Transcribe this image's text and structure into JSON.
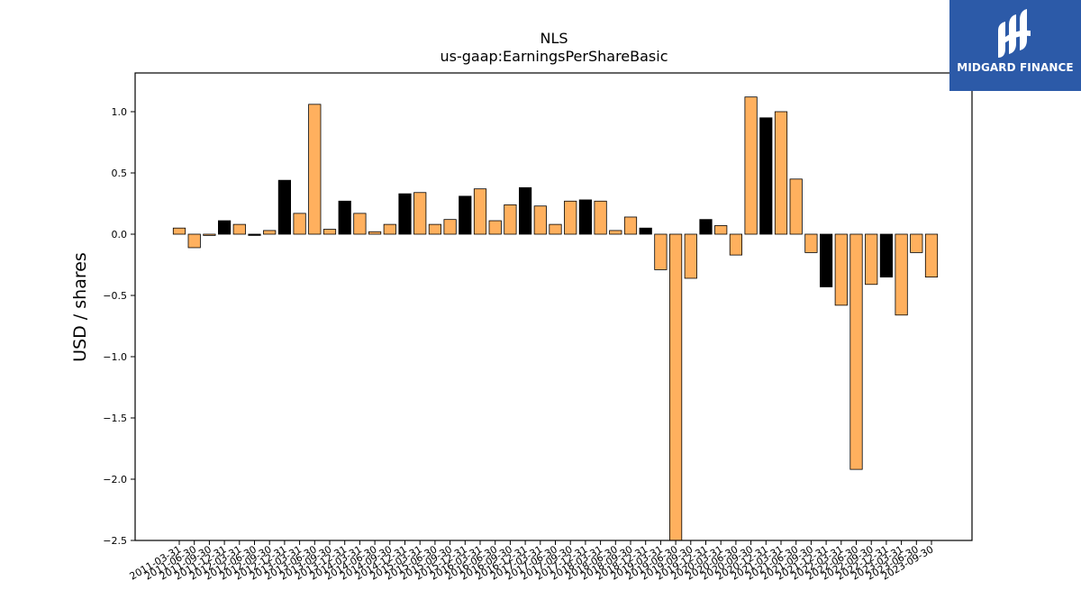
{
  "logo": {
    "text": "MIDGARD FINANCE",
    "icon": "midgard-logo-icon",
    "color": "#2c5aa8"
  },
  "chart_data": {
    "type": "bar",
    "title": "NLS",
    "subtitle": "us-gaap:EarningsPerShareBasic",
    "xlabel": "",
    "ylabel": "USD / shares",
    "ylim": [
      -2.5,
      1.3
    ],
    "yticks": [
      -2.5,
      -2.0,
      -1.5,
      -1.0,
      -0.5,
      0.0,
      0.5,
      1.0
    ],
    "grid": false,
    "colors": {
      "default": "#ffb05e",
      "highlight": "#000000",
      "edge": "#000000"
    },
    "categories": [
      "2011-03-31",
      "2011-06-30",
      "2011-09-30",
      "2011-12-31",
      "2012-03-31",
      "2012-06-30",
      "2012-09-30",
      "2012-12-31",
      "2013-03-31",
      "2013-06-30",
      "2013-09-30",
      "2013-12-31",
      "2014-03-31",
      "2014-06-30",
      "2014-09-30",
      "2014-12-31",
      "2015-03-31",
      "2015-06-30",
      "2015-09-30",
      "2015-12-31",
      "2016-03-31",
      "2016-06-30",
      "2016-09-30",
      "2016-12-31",
      "2017-03-31",
      "2017-06-30",
      "2017-09-30",
      "2017-12-31",
      "2018-03-31",
      "2018-06-30",
      "2018-09-30",
      "2018-12-31",
      "2019-03-31",
      "2019-06-30",
      "2019-09-30",
      "2019-12-31",
      "2020-03-31",
      "2020-06-30",
      "2020-09-30",
      "2020-12-31",
      "2021-03-31",
      "2021-06-30",
      "2021-09-30",
      "2021-12-31",
      "2022-03-31",
      "2022-06-30",
      "2022-09-30",
      "2022-12-31",
      "2023-03-31",
      "2023-06-30",
      "2023-09-30"
    ],
    "values": [
      0.05,
      -0.11,
      -0.01,
      0.11,
      0.08,
      -0.01,
      0.03,
      0.44,
      0.17,
      1.06,
      0.04,
      0.27,
      0.17,
      0.02,
      0.08,
      0.33,
      0.34,
      0.08,
      0.12,
      0.31,
      0.37,
      0.11,
      0.24,
      0.38,
      0.23,
      0.08,
      0.27,
      0.28,
      0.27,
      0.03,
      0.14,
      0.05,
      -0.29,
      -2.6,
      -0.36,
      0.12,
      0.07,
      -0.17,
      1.12,
      0.95,
      1.0,
      0.45,
      -0.15,
      -0.43,
      -0.58,
      -1.92,
      -0.41,
      -0.35,
      -0.66,
      -0.15,
      -0.35
    ],
    "highlight": [
      false,
      false,
      false,
      true,
      false,
      true,
      false,
      true,
      false,
      false,
      false,
      true,
      false,
      false,
      false,
      true,
      false,
      false,
      false,
      true,
      false,
      false,
      false,
      true,
      false,
      false,
      false,
      true,
      false,
      false,
      false,
      true,
      false,
      false,
      false,
      true,
      false,
      false,
      false,
      true,
      false,
      false,
      false,
      true,
      false,
      false,
      false,
      true,
      false,
      false,
      false
    ]
  }
}
